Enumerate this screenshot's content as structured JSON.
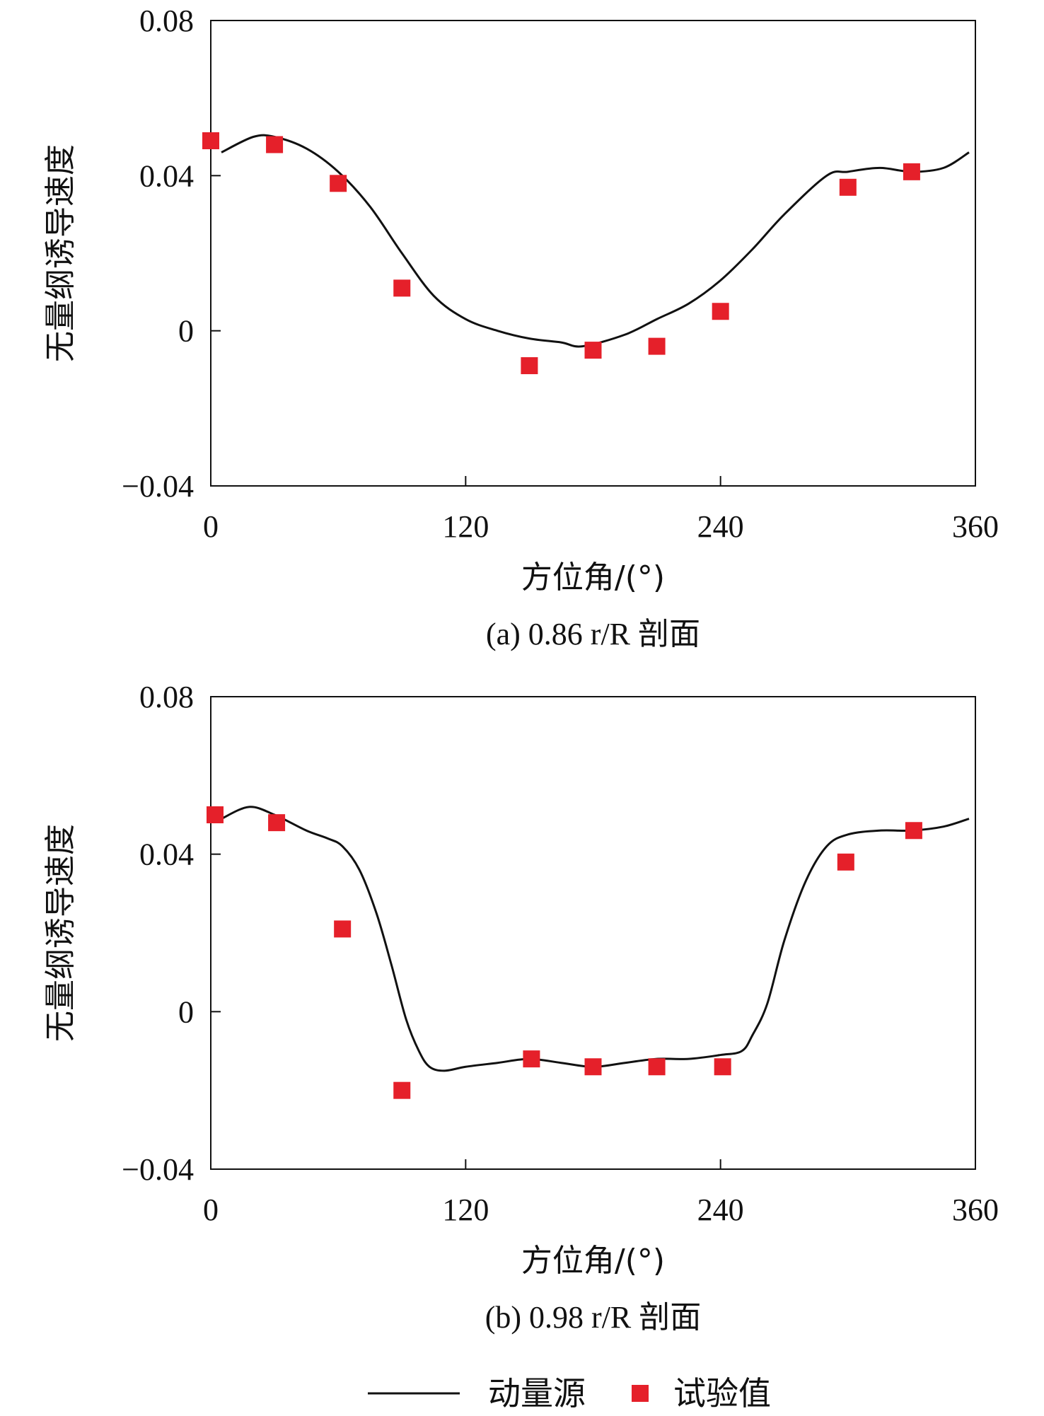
{
  "chart_data": [
    {
      "type": "line",
      "caption": "(a) 0.86 r/R 剖面",
      "xlabel": "方位角/(°)",
      "ylabel": "无量纲诱导速度",
      "xlim": [
        0,
        360
      ],
      "ylim": [
        -0.04,
        0.08
      ],
      "x_ticks": [
        "0",
        "120",
        "240",
        "360"
      ],
      "y_ticks": [
        "0.08",
        "0.04",
        "0",
        "−0.04"
      ],
      "series": [
        {
          "name": "动量源",
          "kind": "line",
          "color": "#111111",
          "x": [
            5,
            20,
            30,
            45,
            60,
            75,
            90,
            105,
            120,
            135,
            150,
            165,
            175,
            195,
            210,
            225,
            240,
            255,
            270,
            290,
            300,
            315,
            330,
            345,
            357
          ],
          "y": [
            0.046,
            0.05,
            0.05,
            0.047,
            0.041,
            0.032,
            0.02,
            0.009,
            0.003,
            0.0,
            -0.002,
            -0.003,
            -0.004,
            -0.001,
            0.003,
            0.007,
            0.013,
            0.021,
            0.03,
            0.04,
            0.041,
            0.042,
            0.041,
            0.042,
            0.046
          ]
        },
        {
          "name": "试验值",
          "kind": "scatter",
          "color": "#e5202a",
          "x": [
            0,
            30,
            60,
            90,
            150,
            180,
            210,
            240,
            300,
            330
          ],
          "y": [
            0.049,
            0.048,
            0.038,
            0.011,
            -0.009,
            -0.005,
            -0.004,
            0.005,
            0.037,
            0.041
          ]
        }
      ]
    },
    {
      "type": "line",
      "caption": "(b) 0.98 r/R 剖面",
      "xlabel": "方位角/(°)",
      "ylabel": "无量纲诱导速度",
      "xlim": [
        0,
        360
      ],
      "ylim": [
        -0.04,
        0.08
      ],
      "x_ticks": [
        "0",
        "120",
        "240",
        "360"
      ],
      "y_ticks": [
        "0.08",
        "0.04",
        "0",
        "−0.04"
      ],
      "series": [
        {
          "name": "动量源",
          "kind": "line",
          "color": "#111111",
          "x": [
            5,
            18,
            30,
            45,
            55,
            62,
            70,
            78,
            85,
            92,
            98,
            103,
            110,
            120,
            135,
            150,
            165,
            180,
            195,
            210,
            225,
            240,
            250,
            255,
            262,
            270,
            280,
            290,
            300,
            315,
            330,
            345,
            357
          ],
          "y": [
            0.049,
            0.052,
            0.05,
            0.046,
            0.044,
            0.042,
            0.036,
            0.025,
            0.012,
            -0.002,
            -0.01,
            -0.014,
            -0.015,
            -0.014,
            -0.013,
            -0.012,
            -0.013,
            -0.014,
            -0.013,
            -0.012,
            -0.012,
            -0.011,
            -0.01,
            -0.006,
            0.002,
            0.018,
            0.033,
            0.042,
            0.045,
            0.046,
            0.046,
            0.047,
            0.049
          ]
        },
        {
          "name": "试验值",
          "kind": "scatter",
          "color": "#e5202a",
          "x": [
            2,
            31,
            62,
            90,
            151,
            180,
            210,
            241,
            299,
            331
          ],
          "y": [
            0.05,
            0.048,
            0.021,
            -0.02,
            -0.012,
            -0.014,
            -0.014,
            -0.014,
            0.038,
            0.046
          ]
        }
      ]
    }
  ],
  "legend": {
    "items": [
      {
        "label": "动量源",
        "symbol": "line",
        "color": "#111111"
      },
      {
        "label": "试验值",
        "symbol": "square",
        "color": "#e5202a"
      }
    ]
  }
}
